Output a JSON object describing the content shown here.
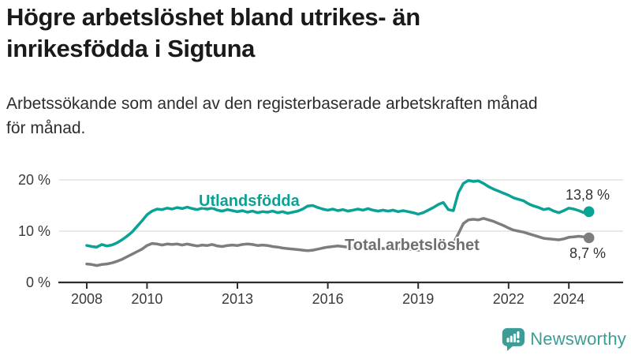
{
  "header": {
    "title_lines": [
      "Högre arbetslöshet bland utrikes- än",
      "inrikesfödda i Sigtuna"
    ],
    "subtitle_lines": [
      "Arbetssökande som andel av den registerbaserade arbetskraften månad",
      "för månad."
    ]
  },
  "chart_data": {
    "type": "line",
    "title": "Högre arbetslöshet bland utrikes- än inrikesfödda i Sigtuna",
    "subtitle": "Arbetssökande som andel av den registerbaserade arbetskraften månad för månad.",
    "xlabel": "",
    "ylabel": "",
    "x_start": 2008.0,
    "points_per_year": 6,
    "x_end": 2024.67,
    "xlim": [
      2007.1,
      2025.8
    ],
    "ylim": [
      0,
      21.5
    ],
    "grid": "horizontal",
    "grid_color": "#dcdcdc",
    "axis_color": "#2e2e2e",
    "x_ticks": [
      {
        "year": 2008,
        "label": "2008"
      },
      {
        "year": 2010,
        "label": "2010"
      },
      {
        "year": 2013,
        "label": "2013"
      },
      {
        "year": 2016,
        "label": "2016"
      },
      {
        "year": 2019,
        "label": "2019"
      },
      {
        "year": 2022,
        "label": "2022"
      },
      {
        "year": 2024,
        "label": "2024"
      }
    ],
    "y_ticks": [
      {
        "value": 0,
        "label": "0 %"
      },
      {
        "value": 10,
        "label": "10 %"
      },
      {
        "value": 20,
        "label": "20 %"
      }
    ],
    "series": [
      {
        "name": "Utlandsfödda",
        "color": "#0aa295",
        "end_label": "13,8 %",
        "values": [
          7.2,
          7.0,
          6.9,
          7.4,
          7.1,
          7.3,
          7.7,
          8.3,
          9.0,
          9.8,
          10.9,
          12.0,
          13.2,
          13.9,
          14.3,
          14.2,
          14.5,
          14.3,
          14.6,
          14.4,
          14.7,
          14.4,
          14.2,
          14.5,
          14.3,
          14.5,
          14.1,
          13.9,
          14.2,
          14.0,
          13.8,
          14.0,
          13.7,
          13.9,
          13.6,
          13.8,
          13.7,
          13.9,
          13.6,
          13.8,
          13.5,
          13.7,
          13.9,
          14.3,
          14.9,
          15.0,
          14.6,
          14.3,
          14.1,
          14.3,
          14.0,
          14.2,
          13.9,
          14.1,
          14.3,
          14.1,
          14.4,
          14.1,
          13.9,
          14.1,
          13.9,
          14.1,
          13.8,
          14.0,
          13.8,
          13.6,
          13.3,
          13.6,
          14.1,
          14.6,
          15.2,
          15.6,
          14.2,
          14.0,
          17.5,
          19.3,
          19.9,
          19.7,
          19.8,
          19.3,
          18.7,
          18.2,
          17.8,
          17.4,
          17.0,
          16.5,
          16.2,
          15.9,
          15.3,
          14.9,
          14.6,
          14.2,
          14.4,
          13.9,
          13.6,
          14.0,
          14.5,
          14.3,
          14.0,
          13.6,
          13.8
        ]
      },
      {
        "name": "Total arbetslöshet",
        "color": "#7d7d7d",
        "end_label": "8,7 %",
        "values": [
          3.6,
          3.5,
          3.3,
          3.5,
          3.6,
          3.8,
          4.1,
          4.5,
          5.0,
          5.5,
          6.0,
          6.5,
          7.2,
          7.6,
          7.5,
          7.3,
          7.5,
          7.4,
          7.5,
          7.3,
          7.5,
          7.3,
          7.1,
          7.3,
          7.2,
          7.4,
          7.1,
          7.0,
          7.2,
          7.3,
          7.2,
          7.4,
          7.5,
          7.4,
          7.2,
          7.3,
          7.2,
          7.0,
          6.9,
          6.7,
          6.6,
          6.5,
          6.4,
          6.3,
          6.2,
          6.3,
          6.5,
          6.7,
          6.9,
          7.0,
          7.1,
          7.0,
          6.9,
          6.8,
          6.9,
          6.8,
          6.7,
          6.8,
          6.7,
          6.6,
          6.7,
          6.6,
          6.5,
          6.6,
          6.5,
          6.4,
          6.3,
          6.4,
          6.6,
          6.8,
          7.0,
          7.1,
          7.2,
          7.6,
          9.5,
          11.5,
          12.2,
          12.3,
          12.2,
          12.5,
          12.2,
          11.9,
          11.5,
          11.1,
          10.6,
          10.2,
          10.0,
          9.8,
          9.5,
          9.2,
          8.9,
          8.6,
          8.5,
          8.4,
          8.3,
          8.5,
          8.8,
          8.9,
          9.0,
          8.9,
          8.7
        ]
      }
    ]
  },
  "branding": {
    "logo_text": "Newsworthy",
    "logo_color": "#3d9c96"
  }
}
